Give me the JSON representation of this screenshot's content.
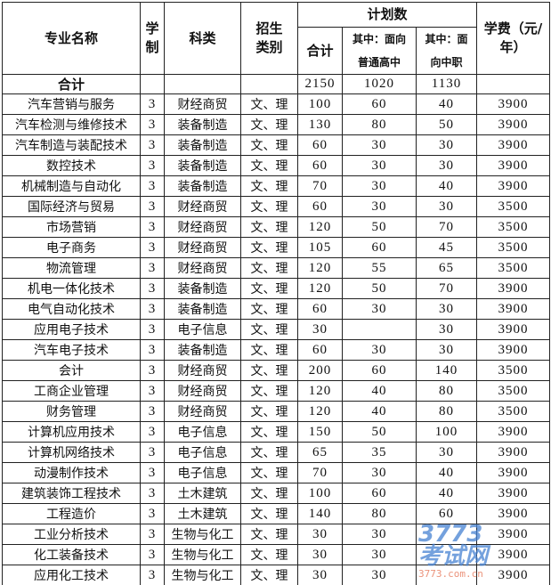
{
  "header": {
    "name": "专业名称",
    "years": "学制",
    "category": "科类",
    "type": "招生类别",
    "plan": "计划数",
    "total": "合计",
    "general": "其中：面向普通高中",
    "vocational": "其中：面向中职",
    "fee": "学费（元/年）"
  },
  "total_row": {
    "label": "合计",
    "total": "2150",
    "general": "1020",
    "vocational": "1130"
  },
  "rows": [
    [
      "汽车营销与服务",
      "3",
      "财经商贸",
      "文、理",
      "100",
      "60",
      "40",
      "3900"
    ],
    [
      "汽车检测与维修技术",
      "3",
      "装备制造",
      "文、理",
      "130",
      "80",
      "50",
      "3900"
    ],
    [
      "汽车制造与装配技术",
      "3",
      "装备制造",
      "文、理",
      "60",
      "30",
      "30",
      "3900"
    ],
    [
      "数控技术",
      "3",
      "装备制造",
      "文、理",
      "60",
      "30",
      "30",
      "3900"
    ],
    [
      "机械制造与自动化",
      "3",
      "装备制造",
      "文、理",
      "70",
      "30",
      "40",
      "3900"
    ],
    [
      "国际经济与贸易",
      "3",
      "财经商贸",
      "文、理",
      "60",
      "30",
      "30",
      "3500"
    ],
    [
      "市场营销",
      "3",
      "财经商贸",
      "文、理",
      "120",
      "50",
      "70",
      "3500"
    ],
    [
      "电子商务",
      "3",
      "财经商贸",
      "文、理",
      "105",
      "60",
      "45",
      "3500"
    ],
    [
      "物流管理",
      "3",
      "财经商贸",
      "文、理",
      "120",
      "55",
      "65",
      "3500"
    ],
    [
      "机电一体化技术",
      "3",
      "装备制造",
      "文、理",
      "120",
      "50",
      "70",
      "3900"
    ],
    [
      "电气自动化技术",
      "3",
      "装备制造",
      "文、理",
      "60",
      "30",
      "30",
      "3900"
    ],
    [
      "应用电子技术",
      "3",
      "电子信息",
      "文、理",
      "30",
      "",
      "30",
      "3900"
    ],
    [
      "汽车电子技术",
      "3",
      "装备制造",
      "文、理",
      "60",
      "30",
      "30",
      "3900"
    ],
    [
      "会计",
      "3",
      "财经商贸",
      "文、理",
      "200",
      "60",
      "140",
      "3500"
    ],
    [
      "工商企业管理",
      "3",
      "财经商贸",
      "文、理",
      "120",
      "40",
      "80",
      "3500"
    ],
    [
      "财务管理",
      "3",
      "财经商贸",
      "文、理",
      "120",
      "40",
      "80",
      "3500"
    ],
    [
      "计算机应用技术",
      "3",
      "电子信息",
      "文、理",
      "150",
      "50",
      "100",
      "3900"
    ],
    [
      "计算机网络技术",
      "3",
      "电子信息",
      "文、理",
      "65",
      "35",
      "30",
      "3900"
    ],
    [
      "动漫制作技术",
      "3",
      "电子信息",
      "文、理",
      "70",
      "30",
      "40",
      "3900"
    ],
    [
      "建筑装饰工程技术",
      "3",
      "土木建筑",
      "文、理",
      "100",
      "60",
      "40",
      "3900"
    ],
    [
      "工程造价",
      "3",
      "土木建筑",
      "文、理",
      "140",
      "80",
      "60",
      "3900"
    ],
    [
      "工业分析技术",
      "3",
      "生物与化工",
      "文、理",
      "30",
      "30",
      "",
      "3900"
    ],
    [
      "化工装备技术",
      "3",
      "生物与化工",
      "文、理",
      "30",
      "30",
      "",
      "3900"
    ],
    [
      "应用化工技术",
      "3",
      "生物与化工",
      "文、理",
      "30",
      "30",
      "",
      "3900"
    ]
  ],
  "watermark": {
    "logo": "3773考试网",
    "url": "3773.com.cn"
  }
}
